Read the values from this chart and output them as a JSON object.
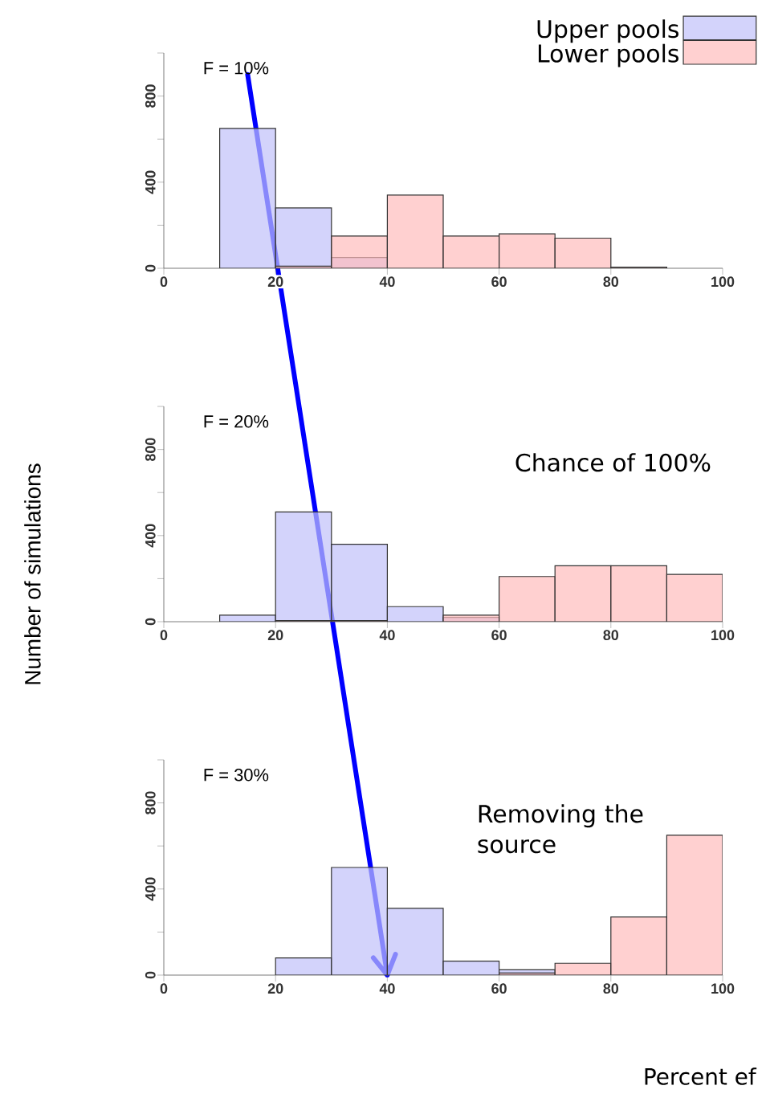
{
  "chart_data": [
    {
      "type": "histogram",
      "bins": [
        0,
        10,
        20,
        30,
        40,
        50,
        60,
        70,
        80,
        90,
        100
      ],
      "legend": "top right",
      "annotations": [
        "F = 10%"
      ],
      "series": [
        {
          "name": "Upper pools",
          "color": "#c0c0fa",
          "values": [
            null,
            650,
            280,
            50,
            0,
            0,
            0,
            0,
            0,
            0
          ]
        },
        {
          "name": "Lower pools",
          "color": "#ffbcbc",
          "values": [
            0,
            0,
            10,
            150,
            340,
            150,
            160,
            140,
            5,
            0
          ]
        }
      ],
      "xlim": [
        0,
        100
      ],
      "xticks": [
        0,
        20,
        40,
        60,
        80,
        100
      ],
      "ylim": [
        0,
        1000
      ],
      "yticks": [
        0,
        {
          "value": 200,
          "label": null
        },
        400,
        {
          "value": 600,
          "label": null
        },
        800,
        {
          "value": 1000,
          "label": null
        }
      ]
    },
    {
      "type": "histogram",
      "bins": [
        0,
        10,
        20,
        30,
        40,
        50,
        60,
        70,
        80,
        90,
        100
      ],
      "ylabel": "Number of simulations",
      "annotations": [
        "F = 20%",
        "Chance of 100%"
      ],
      "series": [
        {
          "color": "#c0c0fa",
          "values": [
            0,
            30,
            510,
            360,
            70,
            20,
            0,
            0,
            0,
            0
          ]
        },
        {
          "color": "#ffbcbc",
          "values": [
            0,
            0,
            5,
            5,
            null,
            30,
            210,
            260,
            260,
            220
          ]
        }
      ],
      "xlim": [
        0,
        100
      ],
      "xticks": [
        0,
        20,
        40,
        60,
        80,
        100
      ],
      "ylim": [
        0,
        1000
      ],
      "yticks": [
        0,
        {
          "value": 200,
          "label": null
        },
        400,
        {
          "value": 600,
          "label": null
        },
        800,
        {
          "value": 1000,
          "label": null
        }
      ]
    },
    {
      "type": "histogram",
      "bins": [
        0,
        10,
        20,
        30,
        40,
        50,
        60,
        70,
        80,
        90,
        100
      ],
      "xlabel": "Percent ef",
      "annotations": [
        "F = 30%",
        "Removing the source"
      ],
      "series": [
        {
          "color": "#c0c0fa",
          "values": [
            0,
            0,
            80,
            500,
            310,
            65,
            25,
            0,
            0,
            0
          ]
        },
        {
          "color": "#ffbcbc",
          "values": [
            0,
            0,
            0,
            0,
            0,
            0,
            10,
            55,
            270,
            650
          ]
        }
      ],
      "xlim": [
        0,
        100
      ],
      "xticks": [
        0,
        20,
        40,
        60,
        80,
        100
      ],
      "ylim": [
        0,
        1000
      ],
      "yticks": [
        0,
        {
          "value": 200,
          "label": null
        },
        400,
        {
          "value": 600,
          "label": null
        },
        800,
        {
          "value": 1000,
          "label": null
        }
      ]
    }
  ]
}
